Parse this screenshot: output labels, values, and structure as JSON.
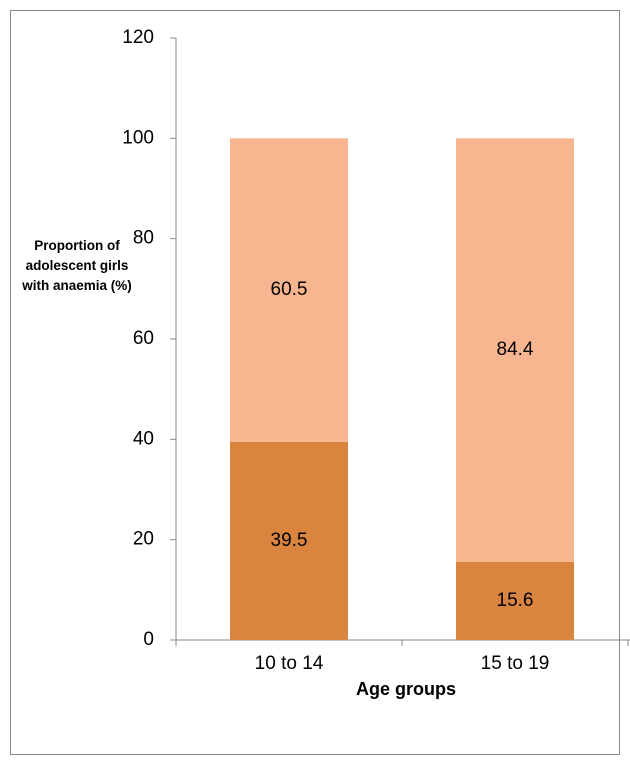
{
  "chart_data": {
    "type": "stacked_bar",
    "x_label": "Age groups",
    "y_label": "Proportion of adolescent girls with anaemia (%)",
    "categories": [
      "10 to 14",
      "15 to 19"
    ],
    "series": [
      {
        "color": "#d9843f",
        "values": [
          39.5,
          15.6
        ]
      },
      {
        "color": "#f8b690",
        "values": [
          60.5,
          84.4
        ]
      }
    ],
    "ylim": [
      0,
      120
    ],
    "yticks": [
      0,
      20,
      40,
      60,
      80,
      100,
      120
    ],
    "grid": false
  }
}
